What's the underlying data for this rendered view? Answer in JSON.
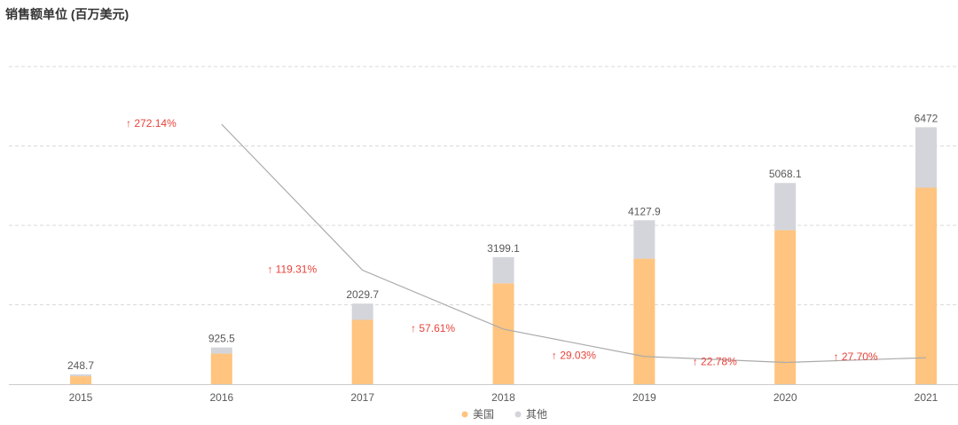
{
  "chart_data": {
    "type": "bar",
    "stacked": true,
    "title": "销售额单位 (百万美元)",
    "categories": [
      "2015",
      "2016",
      "2017",
      "2018",
      "2019",
      "2020",
      "2021"
    ],
    "series": [
      {
        "name": "美国",
        "color": "#ffc47f",
        "values": [
          200,
          770,
          1620,
          2540,
          3160,
          3880,
          4950
        ]
      },
      {
        "name": "其他",
        "color": "#d3d5db",
        "values": [
          48.7,
          155.5,
          409.7,
          659.1,
          967.9,
          1188.1,
          1522
        ]
      }
    ],
    "totals": [
      "248.7",
      "925.5",
      "2029.7",
      "3199.1",
      "4127.9",
      "5068.1",
      "6472"
    ],
    "growth_line": {
      "color": "#aaaaaa",
      "labels": [
        "272.14%",
        "119.31%",
        "57.61%",
        "29.03%",
        "22.78%",
        "27.70%"
      ],
      "values": [
        272.14,
        119.31,
        57.61,
        29.03,
        22.78,
        27.7
      ],
      "label_color": "#e8433a",
      "arrow": "↑"
    },
    "ylim": [
      0,
      8000
    ],
    "grid": true,
    "legend_position": "bottom"
  }
}
